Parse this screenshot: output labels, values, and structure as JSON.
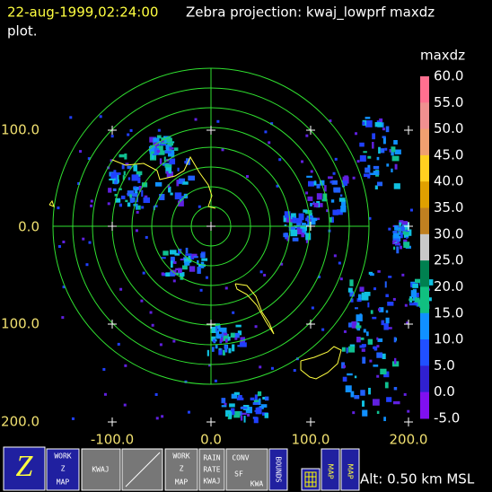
{
  "header": {
    "timestamp": "22-aug-1999,02:24:00",
    "title": "Zebra projection: kwaj_lowprf maxdz",
    "title_cont": "plot."
  },
  "colorbar": {
    "field": "maxdz",
    "labels": [
      "60.0",
      "55.0",
      "50.0",
      "45.0",
      "40.0",
      "35.0",
      "30.0",
      "25.0",
      "20.0",
      "15.0",
      "10.0",
      "5.0",
      "0.0",
      "-5.0"
    ]
  },
  "axes": {
    "x_labels": [
      "-100.0",
      "0.0",
      "100.0",
      "200.0"
    ],
    "y_labels": [
      "100.0",
      "0.0",
      "100.0",
      "200.0"
    ]
  },
  "toolbar": {
    "z_button": "Z",
    "work_map_1": [
      "WORK",
      "Z",
      "MAP"
    ],
    "kwaj_button": "KWAJ",
    "work_map_2": [
      "WORK",
      "Z",
      "MAP"
    ],
    "rain_button": [
      "RAIN",
      "RATE",
      "KWAJ"
    ],
    "conv_button": [
      "CONV",
      "SF",
      "KWA"
    ],
    "bounds_button": "BOUNDS",
    "map_button_1": "MAP",
    "map_button_2": "MAP"
  },
  "status": "Alt: 0.50 km MSL"
}
